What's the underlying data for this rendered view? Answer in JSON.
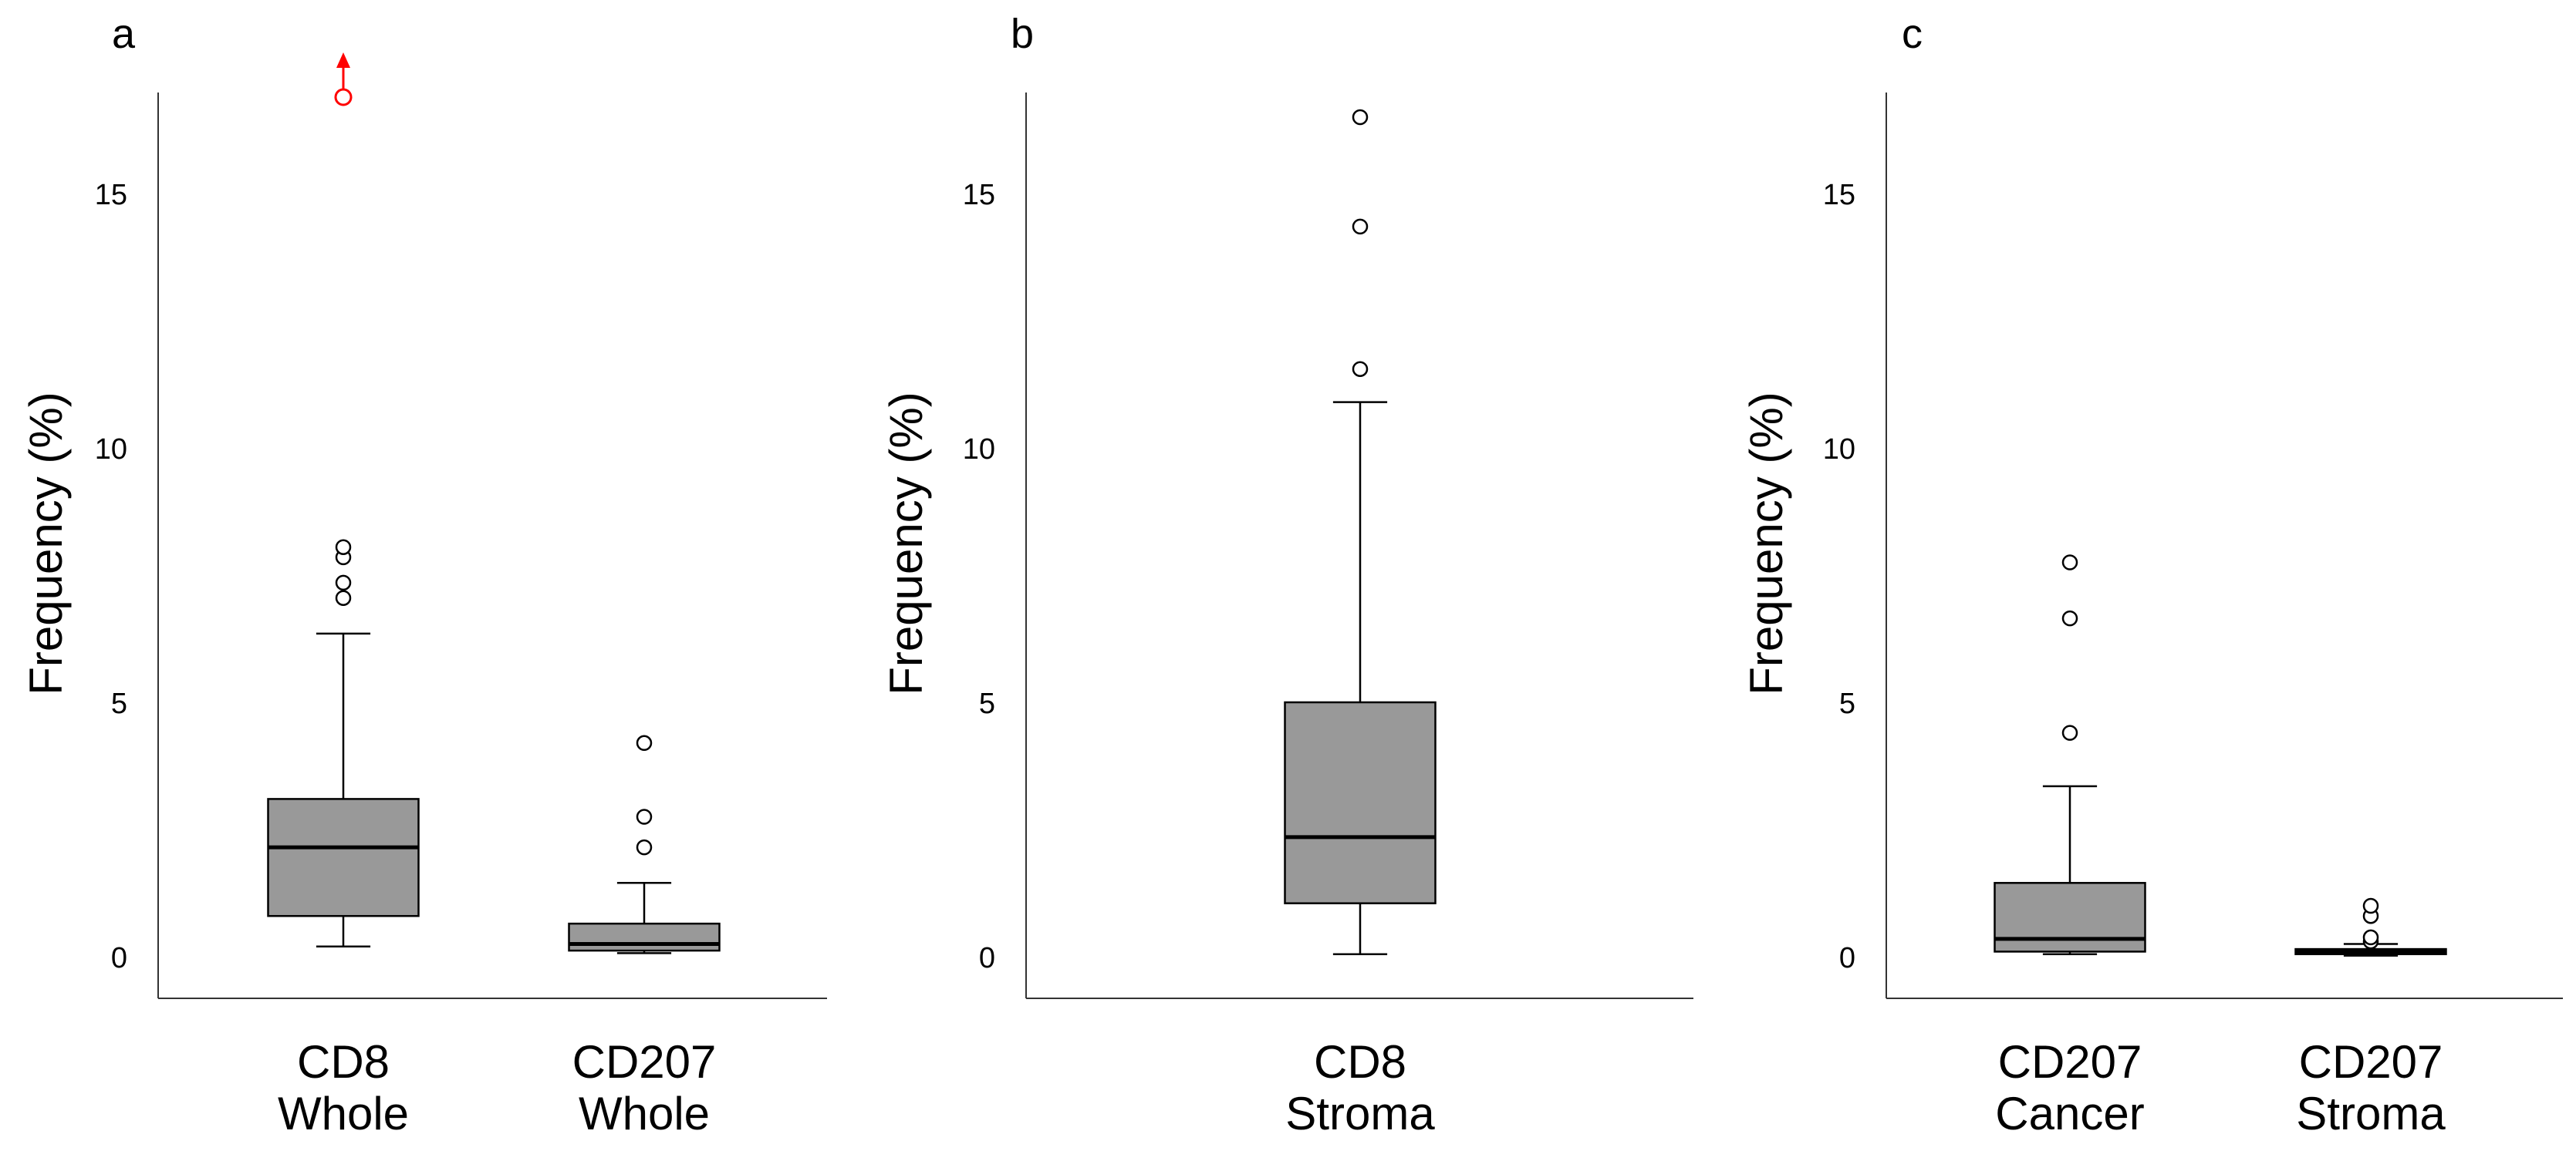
{
  "chart_data": [
    {
      "type": "box",
      "panel_label": "a",
      "ylabel": "Frequency (%)",
      "ylim": [
        -0.8,
        17
      ],
      "yticks": [
        0,
        5,
        10,
        15
      ],
      "categories": [
        {
          "line1": "CD8",
          "line2": "Whole"
        },
        {
          "line1": "CD207",
          "line2": "Whole"
        }
      ],
      "boxes": [
        {
          "q1": 0.8,
          "median": 2.15,
          "q3": 3.1,
          "whisker_low": 0.2,
          "whisker_high": 6.35,
          "outliers": [
            7.05,
            7.35,
            7.85,
            8.05
          ],
          "offscale_outliers": [
            16.8
          ]
        },
        {
          "q1": 0.12,
          "median": 0.25,
          "q3": 0.65,
          "whisker_low": 0.07,
          "whisker_high": 1.45,
          "outliers": [
            2.15,
            2.75,
            4.2
          ],
          "offscale_outliers": []
        }
      ],
      "colors": {
        "box_fill": "#999999",
        "outlier": "#000000",
        "offscale": "#ff0000"
      }
    },
    {
      "type": "box",
      "panel_label": "b",
      "ylabel": "Frequency (%)",
      "ylim": [
        -0.8,
        17
      ],
      "yticks": [
        0,
        5,
        10,
        15
      ],
      "categories": [
        {
          "line1": "CD8",
          "line2": "Stroma"
        }
      ],
      "boxes": [
        {
          "q1": 1.05,
          "median": 2.35,
          "q3": 5.0,
          "whisker_low": 0.05,
          "whisker_high": 10.9,
          "outliers": [
            11.55,
            14.35,
            16.5
          ],
          "offscale_outliers": []
        }
      ],
      "colors": {
        "box_fill": "#999999",
        "outlier": "#000000",
        "offscale": "#ff0000"
      }
    },
    {
      "type": "box",
      "panel_label": "c",
      "ylabel": "Frequency (%)",
      "ylim": [
        -0.8,
        17
      ],
      "yticks": [
        0,
        5,
        10,
        15
      ],
      "categories": [
        {
          "line1": "CD207",
          "line2": "Cancer"
        },
        {
          "line1": "CD207",
          "line2": "Stroma"
        }
      ],
      "boxes": [
        {
          "q1": 0.1,
          "median": 0.35,
          "q3": 1.45,
          "whisker_low": 0.05,
          "whisker_high": 3.35,
          "outliers": [
            4.4,
            6.65,
            7.75
          ],
          "offscale_outliers": []
        },
        {
          "q1": 0.05,
          "median": 0.1,
          "q3": 0.15,
          "whisker_low": 0.02,
          "whisker_high": 0.25,
          "outliers": [
            0.3,
            0.38,
            0.8,
            1.0
          ],
          "offscale_outliers": []
        }
      ],
      "colors": {
        "box_fill": "#999999",
        "outlier": "#000000",
        "offscale": "#ff0000"
      }
    }
  ]
}
